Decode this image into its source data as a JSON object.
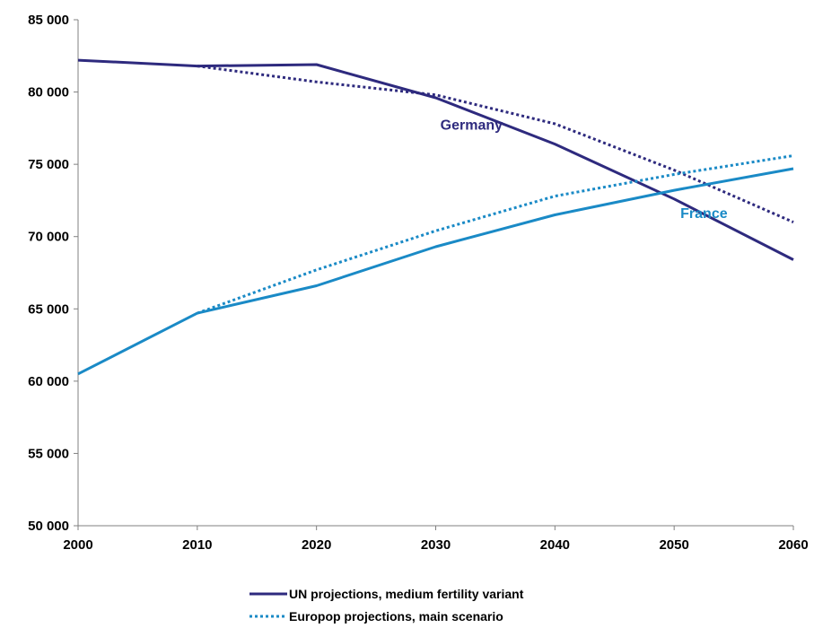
{
  "chart_data": {
    "type": "line",
    "x": [
      2000,
      2010,
      2020,
      2030,
      2040,
      2050,
      2060
    ],
    "xlim": [
      2000,
      2060
    ],
    "ylim": [
      50000,
      85000
    ],
    "x_ticks": [
      2000,
      2010,
      2020,
      2030,
      2040,
      2050,
      2060
    ],
    "x_tick_labels": [
      "2000",
      "2010",
      "2020",
      "2030",
      "2040",
      "2050",
      "2060"
    ],
    "y_ticks": [
      50000,
      55000,
      60000,
      65000,
      70000,
      75000,
      80000,
      85000
    ],
    "y_tick_labels": [
      "50 000",
      "55 000",
      "60 000",
      "65 000",
      "70 000",
      "75 000",
      "80 000",
      "85 000"
    ],
    "grid": false,
    "legend_position": "bottom-center",
    "series": [
      {
        "country": "Germany",
        "source": "UN",
        "style": "solid",
        "color": "#2e2a7e",
        "values": [
          82200,
          81800,
          81900,
          79600,
          76400,
          72600,
          68400
        ]
      },
      {
        "country": "Germany",
        "source": "Europop",
        "style": "dotted",
        "color": "#2e2a7e",
        "values": [
          null,
          81800,
          80700,
          79800,
          77800,
          74600,
          71000
        ]
      },
      {
        "country": "France",
        "source": "UN",
        "style": "solid",
        "color": "#1a8ac6",
        "values": [
          60500,
          64700,
          66600,
          69300,
          71500,
          73200,
          74700
        ]
      },
      {
        "country": "France",
        "source": "Europop",
        "style": "dotted",
        "color": "#1a8ac6",
        "values": [
          null,
          64700,
          67700,
          70400,
          72800,
          74300,
          75600
        ]
      }
    ],
    "annotations": [
      {
        "text": "Germany",
        "x": 2033,
        "y": 77400,
        "color": "#2e2a7e"
      },
      {
        "text": "France",
        "x": 2052.5,
        "y": 71300,
        "color": "#1a8ac6"
      }
    ],
    "legend": [
      {
        "label": "UN projections, medium fertility variant",
        "style": "solid"
      },
      {
        "label": "Europop projections, main scenario",
        "style": "dotted"
      }
    ]
  }
}
